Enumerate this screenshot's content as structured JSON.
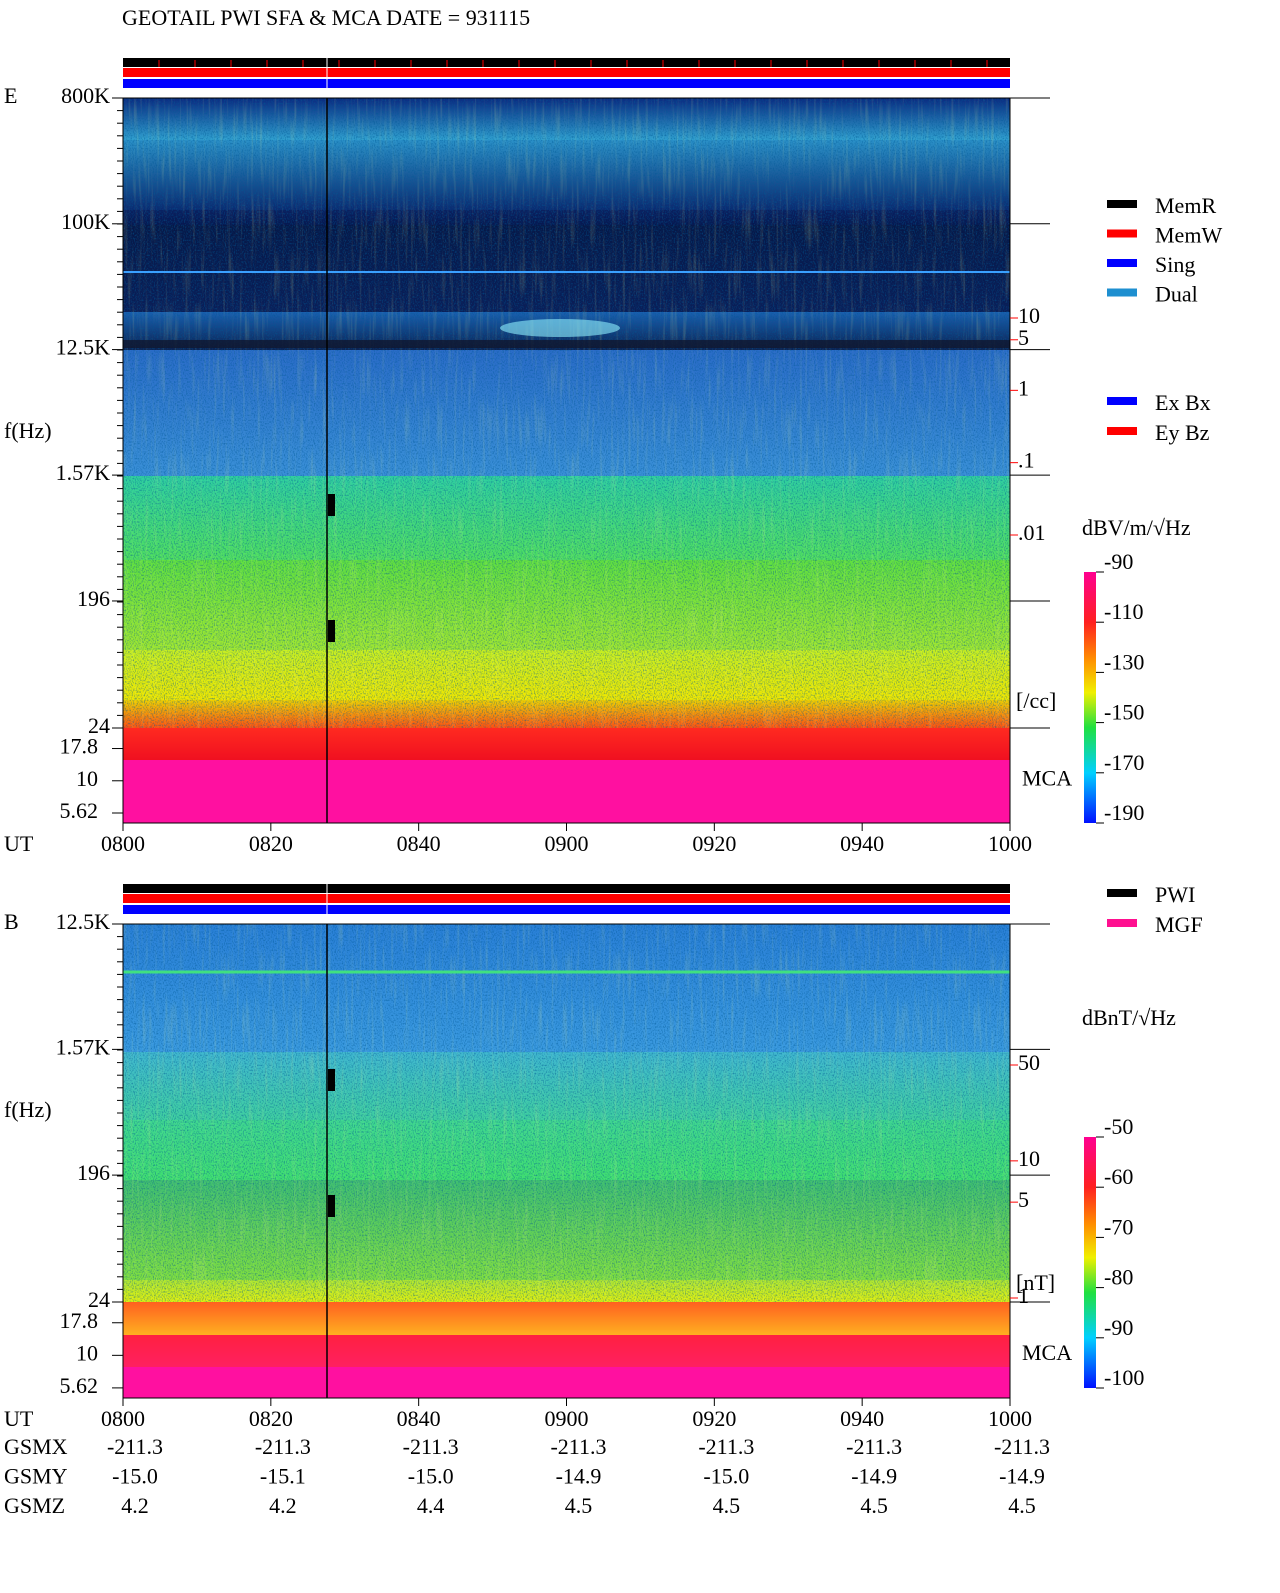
{
  "header": {
    "title": "GEOTAIL  PWI SFA & MCA   DATE = 931115"
  },
  "legends": {
    "mode": [
      {
        "name": "MemR",
        "color": "#000000"
      },
      {
        "name": "MemW",
        "color": "#ff0000"
      },
      {
        "name": "Sing",
        "color": "#0000ff"
      },
      {
        "name": "Dual",
        "color": "#1e8fd0"
      }
    ],
    "component": [
      {
        "name": "Ex Bx",
        "color": "#0000ff"
      },
      {
        "name": "Ey Bz",
        "color": "#ff0000"
      }
    ],
    "source": [
      {
        "name": "PWI",
        "color": "#000000"
      },
      {
        "name": "MGF",
        "color": "#ff1090"
      }
    ]
  },
  "chart_data": [
    {
      "type": "spectrogram",
      "panel_label": "E",
      "ylabel": "f(Hz)",
      "log_y": true,
      "ylim": [
        24,
        800000
      ],
      "yticks": [
        {
          "value": 800000,
          "label": "800K"
        },
        {
          "value": 100000,
          "label": "100K"
        },
        {
          "value": 12500,
          "label": "12.5K"
        },
        {
          "value": 1570,
          "label": "1.57K"
        },
        196,
        24
      ],
      "mca_label": "MCA",
      "mca_ylim": [
        4.7,
        25.7
      ],
      "mca_ticks": [
        17.8,
        10,
        5.62
      ],
      "y2_unit": "[/cc]",
      "y2_color": "#ff0000",
      "y2lim": [
        0.01,
        10
      ],
      "y2ticks": [
        10,
        5,
        1,
        {
          "value": 0.1,
          "label": ".1"
        },
        {
          "value": 0.01,
          "label": ".01"
        }
      ],
      "xlabel": "UT",
      "xlim": [
        480,
        600
      ],
      "xticks": [
        {
          "value": 480,
          "label": "0800"
        },
        {
          "value": 500,
          "label": "0820"
        },
        {
          "value": 520,
          "label": "0840"
        },
        {
          "value": 540,
          "label": "0900"
        },
        {
          "value": 560,
          "label": "0920"
        },
        {
          "value": 580,
          "label": "0940"
        },
        {
          "value": 600,
          "label": "1000"
        }
      ],
      "colorbar": {
        "title": "dBV/m/√Hz",
        "lim": [
          -190,
          -90
        ],
        "ticks": [
          -90,
          -110,
          -130,
          -150,
          -170,
          -190
        ]
      }
    },
    {
      "type": "spectrogram",
      "panel_label": "B",
      "ylabel": "f(Hz)",
      "log_y": true,
      "ylim": [
        24,
        12500
      ],
      "yticks": [
        {
          "value": 12500,
          "label": "12.5K"
        },
        {
          "value": 1570,
          "label": "1.57K"
        },
        196,
        24
      ],
      "mca_label": "MCA",
      "mca_ylim": [
        4.7,
        25.7
      ],
      "mca_ticks": [
        17.8,
        10,
        5.62
      ],
      "y2_unit": "[nT]",
      "y2_color": "#ff0000",
      "y2lim": [
        1,
        50
      ],
      "y2ticks": [
        50,
        10,
        5,
        1
      ],
      "xlabel": "UT",
      "xlim": [
        480,
        600
      ],
      "xticks": [
        {
          "value": 480,
          "label": "0800"
        },
        {
          "value": 500,
          "label": "0820"
        },
        {
          "value": 520,
          "label": "0840"
        },
        {
          "value": 540,
          "label": "0900"
        },
        {
          "value": 560,
          "label": "0920"
        },
        {
          "value": 580,
          "label": "0940"
        },
        {
          "value": 600,
          "label": "1000"
        }
      ],
      "colorbar": {
        "title": "dBnT/√Hz",
        "lim": [
          -100,
          -50
        ],
        "ticks": [
          -50,
          -60,
          -70,
          -80,
          -90,
          -100
        ]
      }
    }
  ],
  "orbit": {
    "rows": [
      {
        "label": "GSMX",
        "values": [
          "-211.3",
          "-211.3",
          "-211.3",
          "-211.3",
          "-211.3",
          "-211.3",
          "-211.3"
        ]
      },
      {
        "label": "GSMY",
        "values": [
          "-15.0",
          "-15.1",
          "-15.0",
          "-14.9",
          "-15.0",
          "-14.9",
          "-14.9"
        ]
      },
      {
        "label": "GSMZ",
        "values": [
          "4.2",
          "4.2",
          "4.4",
          "4.5",
          "4.5",
          "4.5",
          "4.5"
        ]
      }
    ]
  }
}
